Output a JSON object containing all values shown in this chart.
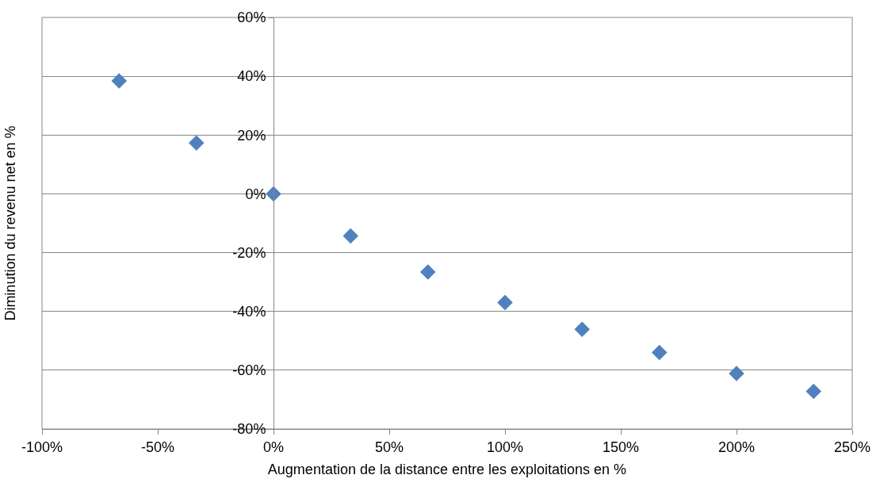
{
  "chart_data": {
    "type": "scatter",
    "xlabel": "Augmentation de la distance entre les exploitations en %",
    "ylabel": "Diminution du revenu net en %",
    "x": [
      -66.7,
      -33.3,
      0,
      33.3,
      66.7,
      100,
      133.3,
      166.7,
      200,
      233.3
    ],
    "series": [
      {
        "color": "#4f81bd",
        "values": [
          38.4,
          17.3,
          0,
          -14.3,
          -26.6,
          -37,
          -46.1,
          -54,
          -61.1,
          -67.2
        ]
      }
    ],
    "xlim": [
      -100,
      250
    ],
    "xticks": [
      {
        "value": -100,
        "label": "-100%"
      },
      {
        "value": -50,
        "label": "-50%"
      },
      {
        "value": 0,
        "label": "0%"
      },
      {
        "value": 50,
        "label": "50%"
      },
      {
        "value": 100,
        "label": "100%"
      },
      {
        "value": 150,
        "label": "150%"
      },
      {
        "value": 200,
        "label": "200%"
      },
      {
        "value": 250,
        "label": "250%"
      }
    ],
    "ylim": [
      -80,
      60
    ],
    "yticks": [
      {
        "value": -80,
        "label": "-80%"
      },
      {
        "value": -60,
        "label": "-60%"
      },
      {
        "value": -40,
        "label": "-40%"
      },
      {
        "value": -20,
        "label": "-20%"
      },
      {
        "value": 0,
        "label": "0%"
      },
      {
        "value": 20,
        "label": "20%"
      },
      {
        "value": 40,
        "label": "40%"
      },
      {
        "value": 60,
        "label": "60%"
      }
    ],
    "grid": "y",
    "marker": "diamond"
  }
}
